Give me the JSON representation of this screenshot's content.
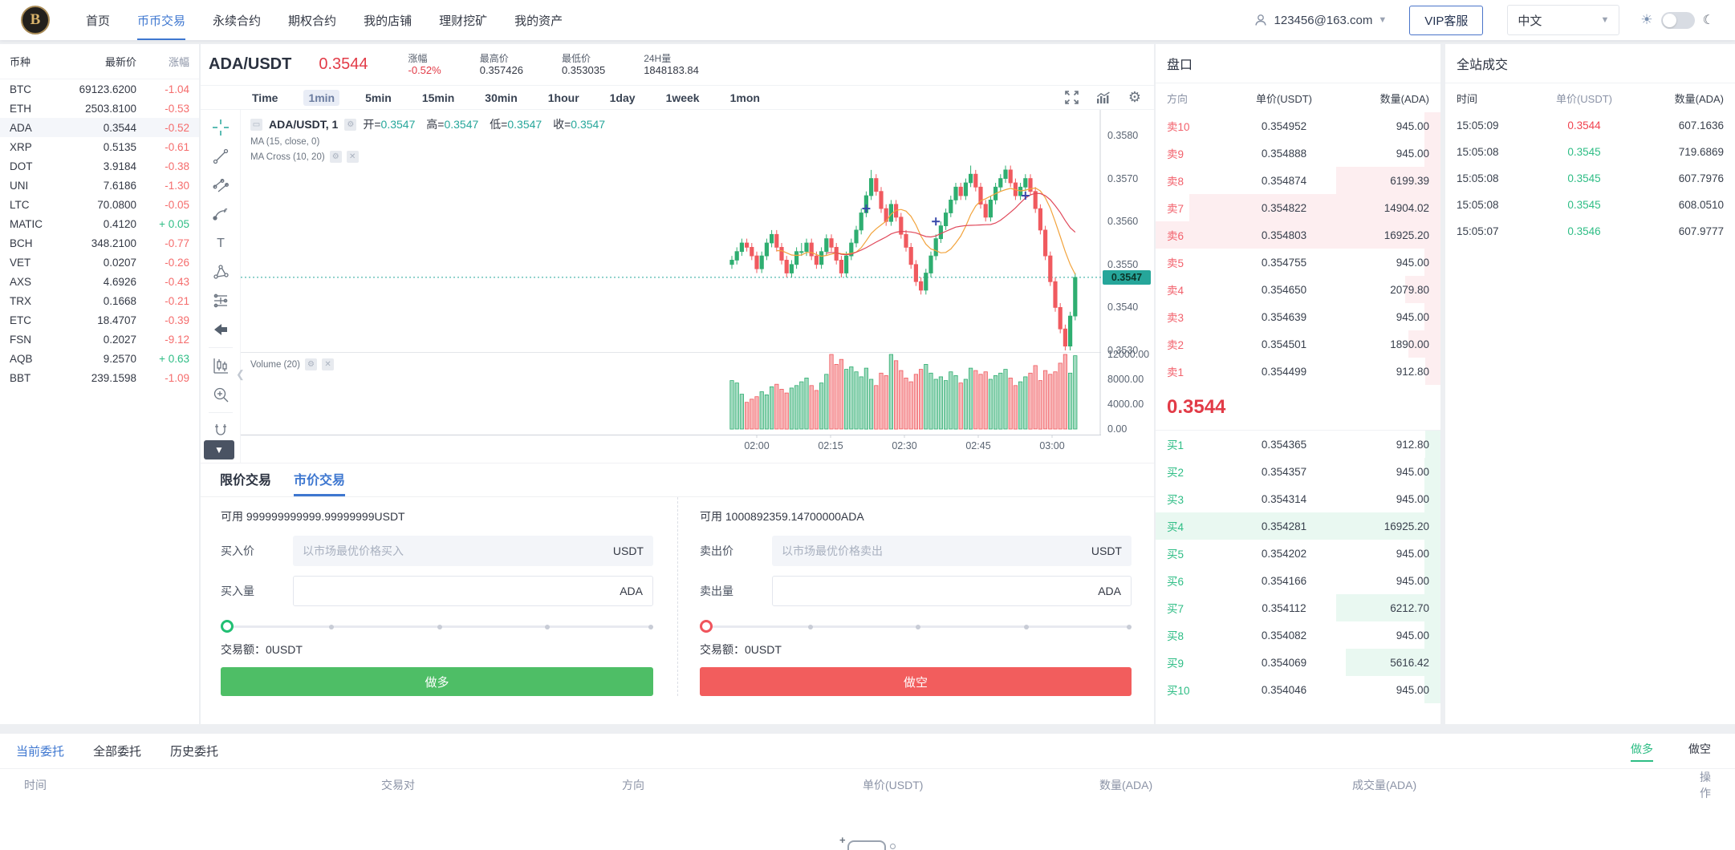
{
  "brand": {
    "logo_text": "B"
  },
  "nav": {
    "items": [
      {
        "label": "首页",
        "active": false
      },
      {
        "label": "币币交易",
        "active": true
      },
      {
        "label": "永续合约",
        "active": false
      },
      {
        "label": "期权合约",
        "active": false
      },
      {
        "label": "我的店铺",
        "active": false
      },
      {
        "label": "理财挖矿",
        "active": false
      },
      {
        "label": "我的资产",
        "active": false
      }
    ]
  },
  "account": {
    "email": "123456@163.com",
    "vip_label": "VIP客服",
    "lang": "中文"
  },
  "watchlist": {
    "headers": [
      "币种",
      "最新价",
      "涨幅"
    ],
    "selected": "ADA",
    "rows": [
      [
        "BTC",
        "69123.6200",
        "-1.04"
      ],
      [
        "ETH",
        "2503.8100",
        "-0.53"
      ],
      [
        "ADA",
        "0.3544",
        "-0.52"
      ],
      [
        "XRP",
        "0.5135",
        "-0.61"
      ],
      [
        "DOT",
        "3.9184",
        "-0.38"
      ],
      [
        "UNI",
        "7.6186",
        "-1.30"
      ],
      [
        "LTC",
        "70.0800",
        "-0.05"
      ],
      [
        "MATIC",
        "0.4120",
        "+ 0.05"
      ],
      [
        "BCH",
        "348.2100",
        "-0.77"
      ],
      [
        "VET",
        "0.0207",
        "-0.26"
      ],
      [
        "AXS",
        "4.6926",
        "-0.43"
      ],
      [
        "TRX",
        "0.1668",
        "-0.21"
      ],
      [
        "ETC",
        "18.4707",
        "-0.39"
      ],
      [
        "FSN",
        "0.2027",
        "-9.12"
      ],
      [
        "AQB",
        "9.2570",
        "+ 0.63"
      ],
      [
        "BBT",
        "239.1598",
        "-1.09"
      ]
    ]
  },
  "market": {
    "pair": "ADA/USDT",
    "price": "0.3544",
    "stats": [
      {
        "label": "涨幅",
        "value": "-0.52%",
        "red": true
      },
      {
        "label": "最高价",
        "value": "0.357426",
        "red": false
      },
      {
        "label": "最低价",
        "value": "0.353035",
        "red": false
      },
      {
        "label": "24H量",
        "value": "1848183.84",
        "red": false
      }
    ]
  },
  "chart": {
    "timeframes": [
      "Time",
      "1min",
      "5min",
      "15min",
      "30min",
      "1hour",
      "1day",
      "1week",
      "1mon"
    ],
    "active_timeframe": "1min",
    "legend_title": "ADA/USDT, 1",
    "ohlc": [
      {
        "label": "开",
        "value": "0.3547"
      },
      {
        "label": "高",
        "value": "0.3547"
      },
      {
        "label": "低",
        "value": "0.3547"
      },
      {
        "label": "收",
        "value": "0.3547"
      }
    ],
    "ma_label": "MA (15, close, 0)",
    "ma_cross_label": "MA Cross (10, 20)",
    "volume_label": "Volume (20)",
    "y_ticks": [
      "0.3580",
      "0.3570",
      "0.3560",
      "0.3550",
      "0.3540",
      "0.3530"
    ],
    "price_tag": "0.3547",
    "vol_ticks": [
      "12000.00",
      "8000.00",
      "4000.00",
      "0.00"
    ],
    "x_ticks": [
      "02:00",
      "02:15",
      "02:30",
      "02:45",
      "03:00"
    ],
    "chart_data": {
      "type": "candlestick",
      "pair": "ADA/USDT",
      "interval": "1min",
      "price_base": 0.35,
      "price_unit": 0.0001,
      "volume_unit": 1000,
      "last_price": 0.3547,
      "candles": [
        [
          50,
          52,
          49,
          51,
          7.8
        ],
        [
          51,
          54,
          50,
          53,
          7.4
        ],
        [
          53,
          56,
          52,
          55,
          5.6
        ],
        [
          55,
          56,
          53,
          54,
          4.3
        ],
        [
          54,
          55,
          51,
          52,
          4.8
        ],
        [
          52,
          53,
          48,
          49,
          5.2
        ],
        [
          49,
          53,
          48,
          52,
          6.0
        ],
        [
          52,
          56,
          51,
          55,
          5.5
        ],
        [
          55,
          58,
          54,
          57,
          6.8
        ],
        [
          57,
          58,
          53,
          54,
          7.2
        ],
        [
          54,
          55,
          50,
          51,
          6.4
        ],
        [
          51,
          52,
          47,
          48,
          5.8
        ],
        [
          48,
          51,
          47,
          50,
          6.6
        ],
        [
          50,
          54,
          49,
          53,
          7.0
        ],
        [
          53,
          55,
          52,
          53,
          7.6
        ],
        [
          53,
          56,
          52,
          55,
          8.2
        ],
        [
          55,
          56,
          51,
          52,
          7.0
        ],
        [
          52,
          53,
          49,
          50,
          6.2
        ],
        [
          50,
          54,
          49,
          53,
          7.4
        ],
        [
          53,
          57,
          52,
          56,
          8.8
        ],
        [
          56,
          57,
          53,
          54,
          12.0
        ],
        [
          54,
          55,
          50,
          51,
          10.4
        ],
        [
          51,
          52,
          47,
          48,
          11.2
        ],
        [
          48,
          53,
          47,
          52,
          9.6
        ],
        [
          52,
          56,
          51,
          55,
          10.0
        ],
        [
          55,
          59,
          54,
          58,
          9.2
        ],
        [
          58,
          63,
          57,
          62,
          8.4
        ],
        [
          62,
          67,
          61,
          66,
          9.8
        ],
        [
          66,
          72,
          65,
          70,
          8.0
        ],
        [
          70,
          71,
          66,
          67,
          7.0
        ],
        [
          67,
          68,
          62,
          63,
          9.0
        ],
        [
          63,
          64,
          59,
          60,
          8.6
        ],
        [
          60,
          65,
          59,
          64,
          12.0
        ],
        [
          64,
          65,
          60,
          61,
          11.0
        ],
        [
          61,
          62,
          56,
          57,
          9.4
        ],
        [
          57,
          58,
          53,
          54,
          8.2
        ],
        [
          54,
          55,
          49,
          50,
          7.6
        ],
        [
          50,
          51,
          45,
          46,
          8.8
        ],
        [
          46,
          47,
          43,
          44,
          9.6
        ],
        [
          44,
          49,
          43,
          48,
          10.4
        ],
        [
          48,
          53,
          47,
          52,
          9.0
        ],
        [
          52,
          57,
          51,
          56,
          8.0
        ],
        [
          56,
          60,
          55,
          59,
          8.4
        ],
        [
          59,
          63,
          58,
          62,
          7.8
        ],
        [
          62,
          66,
          61,
          65,
          9.2
        ],
        [
          65,
          69,
          64,
          68,
          8.6
        ],
        [
          68,
          69,
          65,
          66,
          7.4
        ],
        [
          66,
          70,
          65,
          69,
          8.0
        ],
        [
          69,
          73,
          68,
          71,
          9.8
        ],
        [
          71,
          72,
          67,
          68,
          9.4
        ],
        [
          68,
          69,
          63,
          64,
          8.8
        ],
        [
          64,
          65,
          60,
          61,
          9.2
        ],
        [
          61,
          66,
          60,
          65,
          8.0
        ],
        [
          65,
          69,
          64,
          68,
          8.6
        ],
        [
          68,
          71,
          67,
          70,
          9.0
        ],
        [
          70,
          73,
          69,
          72,
          9.6
        ],
        [
          72,
          73,
          68,
          69,
          8.2
        ],
        [
          69,
          70,
          65,
          66,
          7.0
        ],
        [
          66,
          69,
          65,
          68,
          7.6
        ],
        [
          68,
          71,
          67,
          70,
          8.4
        ],
        [
          70,
          71,
          66,
          67,
          9.0
        ],
        [
          67,
          68,
          62,
          63,
          10.2
        ],
        [
          63,
          64,
          57,
          58,
          7.8
        ],
        [
          58,
          59,
          51,
          52,
          9.4
        ],
        [
          52,
          53,
          45,
          46,
          8.8
        ],
        [
          46,
          47,
          39,
          40,
          9.2
        ],
        [
          40,
          41,
          34,
          35,
          10.6
        ],
        [
          35,
          36,
          30,
          31,
          12.0
        ],
        [
          31,
          39,
          30,
          38,
          9.0
        ],
        [
          38,
          48,
          37,
          47,
          11.8
        ]
      ],
      "markers": [
        {
          "index": 27,
          "u": 63
        },
        {
          "index": 41,
          "u": 60
        },
        {
          "index": 59,
          "u": 66
        }
      ],
      "colors": {
        "up": "#2fae71",
        "down": "#f05a5f",
        "ma10": "#f2a33c",
        "ma20": "#e0485a",
        "price_line": "#26a69a",
        "marker": "#3949ab"
      }
    }
  },
  "toolbar": {
    "tools": [
      "crosshair",
      "trend-line",
      "parallel-channel",
      "brush",
      "text",
      "shapes",
      "levels",
      "arrow-left",
      "candles-pane",
      "zoom-in",
      "magnet"
    ]
  },
  "trade": {
    "tabs": [
      {
        "label": "限价交易",
        "active": false
      },
      {
        "label": "市价交易",
        "active": true
      }
    ],
    "buy": {
      "available": "可用 999999999999.99999999USDT",
      "price_label": "买入价",
      "price_placeholder": "以市场最优价格买入",
      "price_unit": "USDT",
      "qty_label": "买入量",
      "qty_unit": "ADA",
      "amount_label": "交易额：0USDT",
      "button": "做多"
    },
    "sell": {
      "available": "可用 1000892359.14700000ADA",
      "price_label": "卖出价",
      "price_placeholder": "以市场最优价格卖出",
      "price_unit": "USDT",
      "qty_label": "卖出量",
      "qty_unit": "ADA",
      "amount_label": "交易额：0USDT",
      "button": "做空"
    }
  },
  "orderbook": {
    "title": "盘口",
    "headers": [
      "方向",
      "单价(USDT)",
      "数量(ADA)"
    ],
    "asks": [
      {
        "dir": "卖10",
        "price": "0.354952",
        "qty": "945.00"
      },
      {
        "dir": "卖9",
        "price": "0.354888",
        "qty": "945.00"
      },
      {
        "dir": "卖8",
        "price": "0.354874",
        "qty": "6199.39"
      },
      {
        "dir": "卖7",
        "price": "0.354822",
        "qty": "14904.02"
      },
      {
        "dir": "卖6",
        "price": "0.354803",
        "qty": "16925.20"
      },
      {
        "dir": "卖5",
        "price": "0.354755",
        "qty": "945.00"
      },
      {
        "dir": "卖4",
        "price": "0.354650",
        "qty": "2079.80"
      },
      {
        "dir": "卖3",
        "price": "0.354639",
        "qty": "945.00"
      },
      {
        "dir": "卖2",
        "price": "0.354501",
        "qty": "1890.00"
      },
      {
        "dir": "卖1",
        "price": "0.354499",
        "qty": "912.80"
      }
    ],
    "last_price": "0.3544",
    "bids": [
      {
        "dir": "买1",
        "price": "0.354365",
        "qty": "912.80"
      },
      {
        "dir": "买2",
        "price": "0.354357",
        "qty": "945.00"
      },
      {
        "dir": "买3",
        "price": "0.354314",
        "qty": "945.00"
      },
      {
        "dir": "买4",
        "price": "0.354281",
        "qty": "16925.20"
      },
      {
        "dir": "买5",
        "price": "0.354202",
        "qty": "945.00"
      },
      {
        "dir": "买6",
        "price": "0.354166",
        "qty": "945.00"
      },
      {
        "dir": "买7",
        "price": "0.354112",
        "qty": "6212.70"
      },
      {
        "dir": "买8",
        "price": "0.354082",
        "qty": "945.00"
      },
      {
        "dir": "买9",
        "price": "0.354069",
        "qty": "5616.42"
      },
      {
        "dir": "买10",
        "price": "0.354046",
        "qty": "945.00"
      }
    ]
  },
  "trades_panel": {
    "title": "全站成交",
    "headers": [
      "时间",
      "单价(USDT)",
      "数量(ADA)"
    ],
    "rows": [
      {
        "time": "15:05:09",
        "price": "0.3544",
        "up": false,
        "qty": "607.1636"
      },
      {
        "time": "15:05:08",
        "price": "0.3545",
        "up": true,
        "qty": "719.6869"
      },
      {
        "time": "15:05:08",
        "price": "0.3545",
        "up": true,
        "qty": "607.7976"
      },
      {
        "time": "15:05:08",
        "price": "0.3545",
        "up": true,
        "qty": "608.0510"
      },
      {
        "time": "15:05:07",
        "price": "0.3546",
        "up": true,
        "qty": "607.9777"
      }
    ]
  },
  "orders": {
    "tabs": [
      {
        "label": "当前委托",
        "active": true
      },
      {
        "label": "全部委托",
        "active": false
      },
      {
        "label": "历史委托",
        "active": false
      }
    ],
    "side_tabs": [
      {
        "label": "做多",
        "active": true
      },
      {
        "label": "做空",
        "active": false
      }
    ],
    "headers": [
      "时间",
      "交易对",
      "方向",
      "单价(USDT)",
      "数量(ADA)",
      "成交量(ADA)",
      "操作"
    ]
  }
}
